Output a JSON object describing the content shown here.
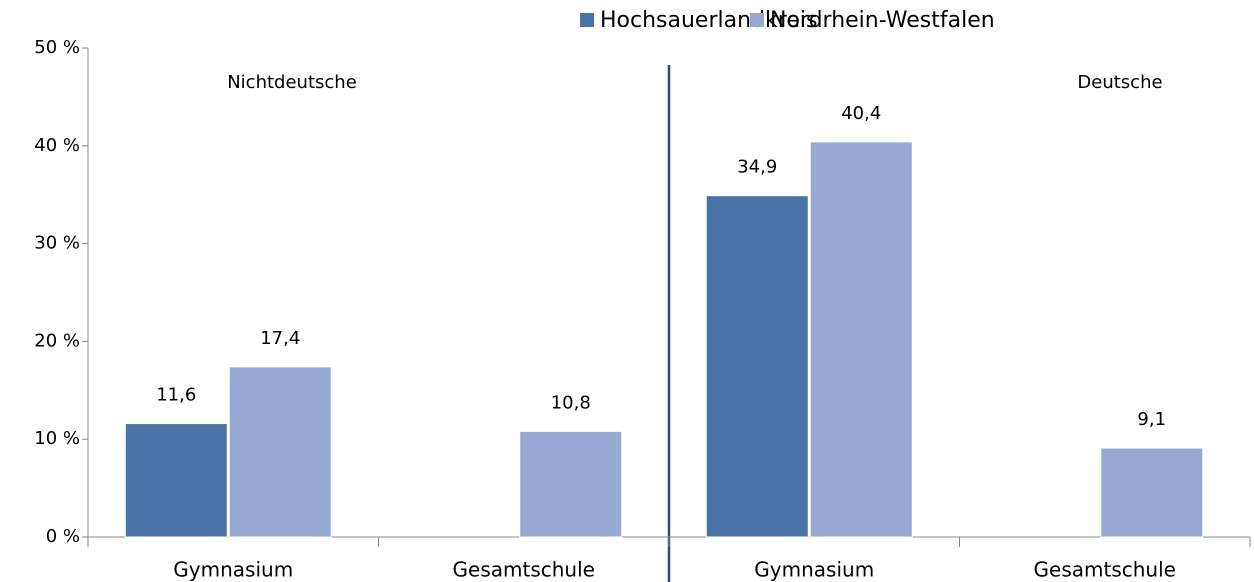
{
  "chart_data": {
    "type": "bar",
    "categories": [
      "Gymnasium",
      "Gesamtschule",
      "Gymnasium",
      "Gesamtschule"
    ],
    "series": [
      {
        "name": "Hochsauerlandkreis",
        "color": "#4a74a8",
        "values": [
          11.6,
          null,
          34.9,
          null
        ],
        "value_labels": [
          "11,6",
          null,
          "34,9",
          null
        ]
      },
      {
        "name": "Nordrhein-Westfalen",
        "color": "#95a9d3",
        "values": [
          17.4,
          10.8,
          40.4,
          9.1
        ],
        "value_labels": [
          "17,4",
          "10,8",
          "40,4",
          "9,1"
        ]
      }
    ],
    "annotations": [
      "Nichtdeutsche",
      "Deutsche"
    ],
    "ylim": [
      0,
      50
    ],
    "yticks": [
      {
        "value": 0,
        "label": "0 %"
      },
      {
        "value": 10,
        "label": "10 %"
      },
      {
        "value": 20,
        "label": "20 %"
      },
      {
        "value": 30,
        "label": "30 %"
      },
      {
        "value": 40,
        "label": "40 %"
      },
      {
        "value": 50,
        "label": "50 %"
      }
    ],
    "grid": false,
    "legend": "top"
  }
}
